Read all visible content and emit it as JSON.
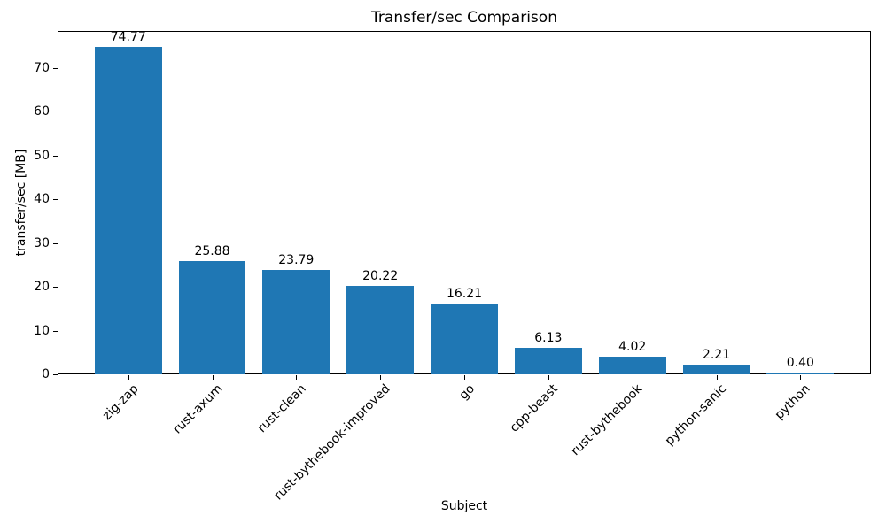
{
  "chart_data": {
    "type": "bar",
    "title": "Transfer/sec Comparison",
    "xlabel": "Subject",
    "ylabel": "transfer/sec [MB]",
    "categories": [
      "zig-zap",
      "rust-axum",
      "rust-clean",
      "rust-bythebook-improved",
      "go",
      "cpp-beast",
      "rust-bythebook",
      "python-sanic",
      "python"
    ],
    "values": [
      74.77,
      25.88,
      23.79,
      20.22,
      16.21,
      6.13,
      4.02,
      2.21,
      0.4
    ],
    "yticks": [
      0,
      10,
      20,
      30,
      40,
      50,
      60,
      70
    ],
    "ylim": [
      0,
      78.4
    ],
    "bar_color": "#1f77b4",
    "spine_color": "#000000",
    "text_color": "#000000",
    "background_color": "#ffffff",
    "grid": false,
    "legend": null,
    "x_tick_label_rotation_deg": 45
  }
}
